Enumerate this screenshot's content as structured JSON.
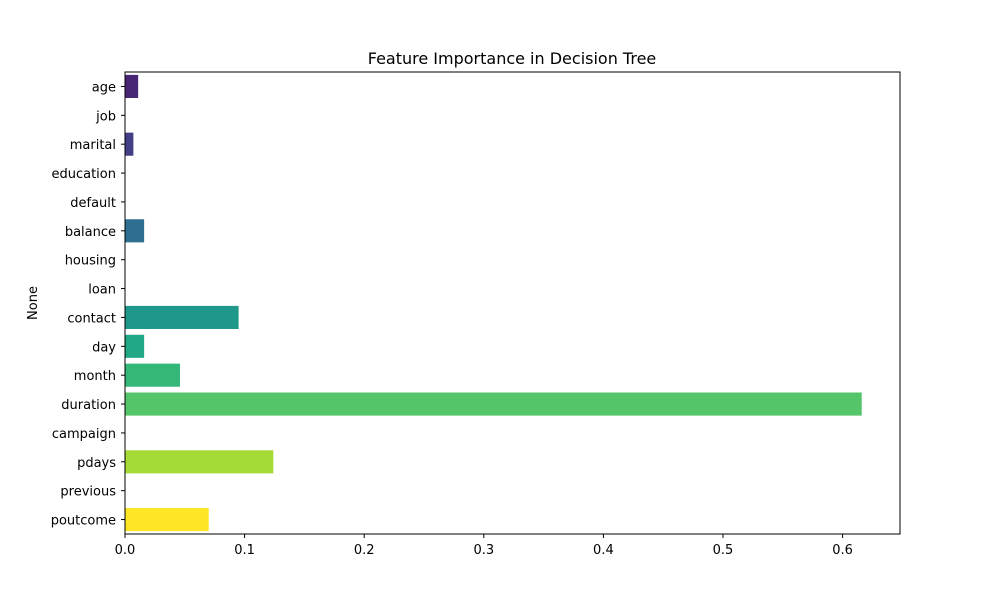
{
  "chart_data": {
    "type": "bar",
    "orientation": "horizontal",
    "title": "Feature Importance in Decision Tree",
    "xlabel": "",
    "ylabel": "None",
    "categories": [
      "age",
      "job",
      "marital",
      "education",
      "default",
      "balance",
      "housing",
      "loan",
      "contact",
      "day",
      "month",
      "duration",
      "campaign",
      "pdays",
      "previous",
      "poutcome"
    ],
    "values": [
      0.011,
      0.0,
      0.007,
      0.0,
      0.0,
      0.016,
      0.0,
      0.0,
      0.095,
      0.016,
      0.046,
      0.616,
      0.0,
      0.124,
      0.0,
      0.07
    ],
    "colors": [
      "#482475",
      "#472c7a",
      "#433e85",
      "#3c4f8a",
      "#355f8d",
      "#2e6e8e",
      "#287d8e",
      "#238a8d",
      "#1f988b",
      "#22a884",
      "#35b779",
      "#54c568",
      "#7ad151",
      "#a5db36",
      "#d2e21b",
      "#fde725"
    ],
    "xlim": [
      0,
      0.648
    ],
    "xticks": [
      0,
      0.1,
      0.2,
      0.3,
      0.4,
      0.5,
      0.6
    ],
    "xtick_labels": [
      "0.0",
      "0.1",
      "0.2",
      "0.3",
      "0.4",
      "0.5",
      "0.6"
    ],
    "grid": false
  }
}
